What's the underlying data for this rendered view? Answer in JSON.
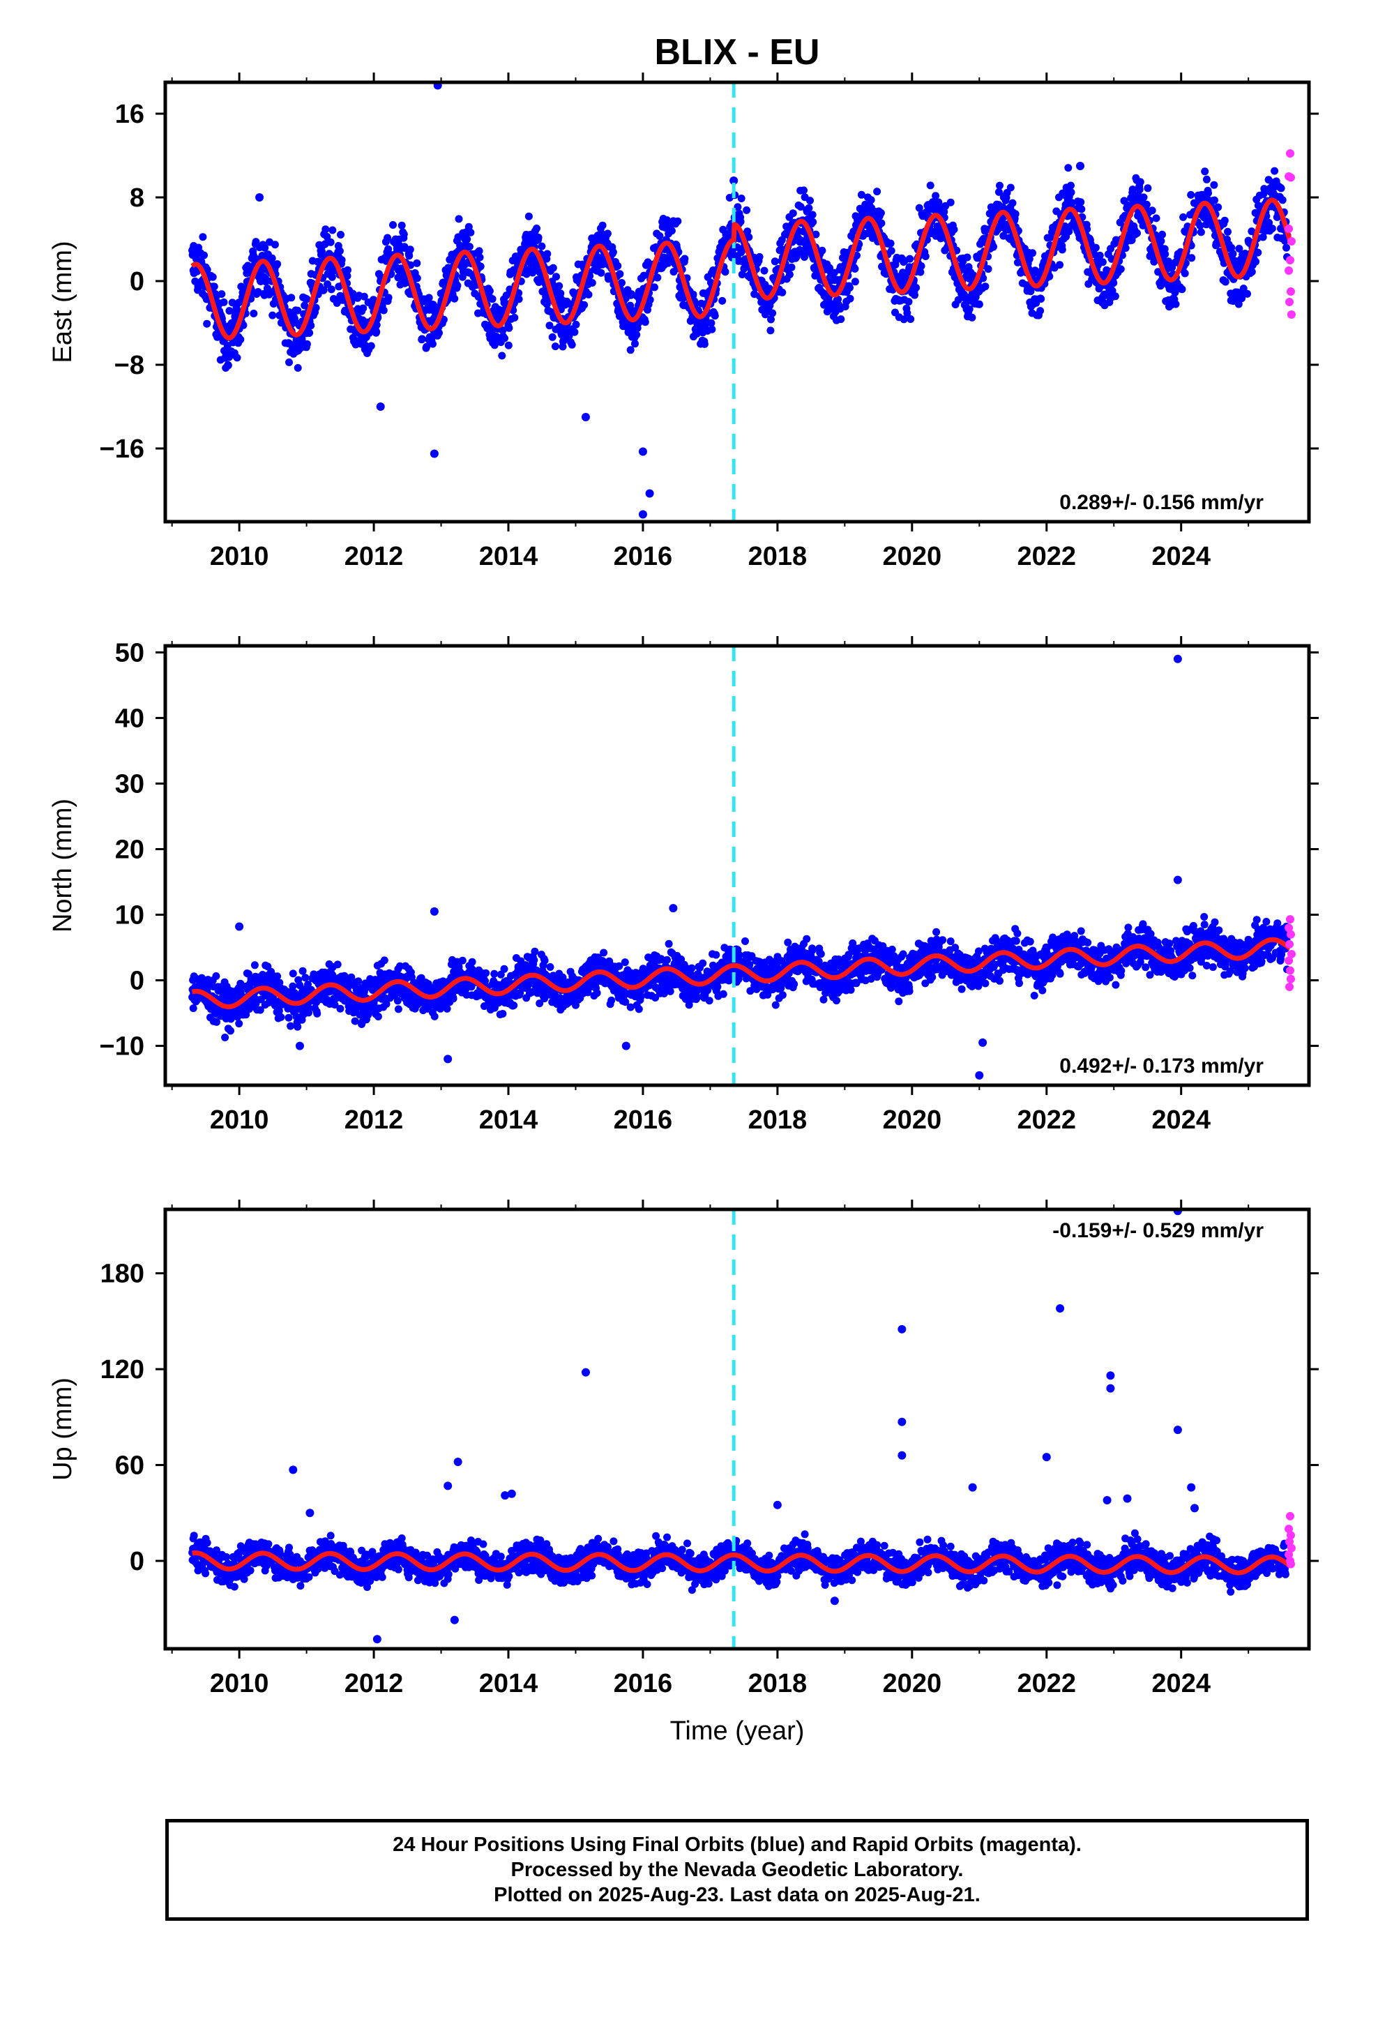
{
  "title": "BLIX - EU",
  "caption": {
    "line1": "24 Hour Positions Using Final Orbits (blue) and Rapid Orbits (magenta).",
    "line2": "Processed by the Nevada Geodetic Laboratory.",
    "line3": "Plotted on 2025-Aug-23. Last data on 2025-Aug-21."
  },
  "colors": {
    "final_orbits": "#0000ff",
    "rapid_orbits": "#ff33ff",
    "model_fit": "#ff1a1a",
    "event_line": "#33e6ee"
  },
  "chart_data": [
    {
      "type": "scatter",
      "name": "east",
      "ylabel": "East (mm)",
      "xlabel": "",
      "xlim": [
        2008.9,
        2025.9
      ],
      "ylim": [
        -23,
        19
      ],
      "xticks": [
        "2010",
        "2012",
        "2014",
        "2016",
        "2018",
        "2020",
        "2022",
        "2024"
      ],
      "yticks": [
        "−16",
        "−8",
        "0",
        "8",
        "16"
      ],
      "ytick_values": [
        -16,
        -8,
        0,
        8,
        16
      ],
      "rate_label": "0.289+/- 0.156 mm/yr",
      "rate_label_position": "bottom-right",
      "event_line_x": 2017.35,
      "model": {
        "offset": -2.0,
        "trend": 0.289,
        "annual_amplitude": 3.6,
        "noise_sd": 1.5,
        "step_at_event": 1.5
      },
      "outliers": [
        {
          "x": 2012.95,
          "y": 18.7
        },
        {
          "x": 2012.9,
          "y": -16.5
        },
        {
          "x": 2016.0,
          "y": -16.3
        },
        {
          "x": 2016.1,
          "y": -20.3
        },
        {
          "x": 2016.0,
          "y": -22.3
        },
        {
          "x": 2015.15,
          "y": -13.0
        },
        {
          "x": 2012.1,
          "y": -12.0
        },
        {
          "x": 2010.3,
          "y": 8.0
        },
        {
          "x": 2017.35,
          "y": 9.6
        },
        {
          "x": 2022.5,
          "y": 11.0
        }
      ],
      "rapid_points": [
        {
          "x": 2025.62,
          "y": 12.2
        },
        {
          "x": 2025.6,
          "y": 10.0
        },
        {
          "x": 2025.63,
          "y": 9.9
        },
        {
          "x": 2025.6,
          "y": 5.0
        },
        {
          "x": 2025.64,
          "y": 3.8
        },
        {
          "x": 2025.62,
          "y": 2.0
        },
        {
          "x": 2025.6,
          "y": 1.0
        },
        {
          "x": 2025.63,
          "y": -1.0
        },
        {
          "x": 2025.61,
          "y": -2.0
        },
        {
          "x": 2025.64,
          "y": -3.2
        }
      ]
    },
    {
      "type": "scatter",
      "name": "north",
      "ylabel": "North (mm)",
      "xlabel": "",
      "xlim": [
        2008.9,
        2025.9
      ],
      "ylim": [
        -16,
        51
      ],
      "xticks": [
        "2010",
        "2012",
        "2014",
        "2016",
        "2018",
        "2020",
        "2022",
        "2024"
      ],
      "yticks": [
        "−10",
        "0",
        "10",
        "20",
        "30",
        "40",
        "50"
      ],
      "ytick_values": [
        -10,
        0,
        10,
        20,
        30,
        40,
        50
      ],
      "rate_label": "0.492+/- 0.173 mm/yr",
      "rate_label_position": "bottom-right",
      "event_line_x": 2017.35,
      "model": {
        "offset": -3.0,
        "trend": 0.492,
        "annual_amplitude": 1.3,
        "noise_sd": 1.6,
        "step_at_event": 0
      },
      "outliers": [
        {
          "x": 2023.95,
          "y": 49.0
        },
        {
          "x": 2023.95,
          "y": 15.3
        },
        {
          "x": 2012.9,
          "y": 10.5
        },
        {
          "x": 2016.45,
          "y": 11.0
        },
        {
          "x": 2010.0,
          "y": 8.2
        },
        {
          "x": 2013.1,
          "y": -12.0
        },
        {
          "x": 2021.0,
          "y": -14.5
        },
        {
          "x": 2021.05,
          "y": -9.5
        },
        {
          "x": 2015.75,
          "y": -10.0
        },
        {
          "x": 2010.9,
          "y": -10.0
        }
      ],
      "rapid_points": [
        {
          "x": 2025.62,
          "y": 9.3
        },
        {
          "x": 2025.6,
          "y": 8.0
        },
        {
          "x": 2025.63,
          "y": 7.0
        },
        {
          "x": 2025.61,
          "y": 5.5
        },
        {
          "x": 2025.64,
          "y": 4.0
        },
        {
          "x": 2025.6,
          "y": 3.0
        },
        {
          "x": 2025.62,
          "y": 1.5
        },
        {
          "x": 2025.63,
          "y": 0.2
        },
        {
          "x": 2025.61,
          "y": -1.0
        }
      ]
    },
    {
      "type": "scatter",
      "name": "up",
      "ylabel": "Up (mm)",
      "xlabel": "Time (year)",
      "xlim": [
        2008.9,
        2025.9
      ],
      "ylim": [
        -55,
        220
      ],
      "xticks": [
        "2010",
        "2012",
        "2014",
        "2016",
        "2018",
        "2020",
        "2022",
        "2024"
      ],
      "yticks": [
        "0",
        "60",
        "120",
        "180"
      ],
      "ytick_values": [
        0,
        60,
        120,
        180
      ],
      "rate_label": "-0.159+/- 0.529 mm/yr",
      "rate_label_position": "top-right",
      "event_line_x": 2017.35,
      "model": {
        "offset": 0.0,
        "trend": -0.159,
        "annual_amplitude": 5.0,
        "noise_sd": 5.0,
        "step_at_event": 0
      },
      "outliers": [
        {
          "x": 2023.95,
          "y": 219.0
        },
        {
          "x": 2022.2,
          "y": 158.0
        },
        {
          "x": 2019.85,
          "y": 145.0
        },
        {
          "x": 2015.15,
          "y": 118.0
        },
        {
          "x": 2022.95,
          "y": 116.0
        },
        {
          "x": 2022.95,
          "y": 108.0
        },
        {
          "x": 2019.85,
          "y": 87.0
        },
        {
          "x": 2023.95,
          "y": 82.0
        },
        {
          "x": 2019.85,
          "y": 66.0
        },
        {
          "x": 2022.0,
          "y": 65.0
        },
        {
          "x": 2013.25,
          "y": 62.0
        },
        {
          "x": 2010.8,
          "y": 57.0
        },
        {
          "x": 2013.1,
          "y": 47.0
        },
        {
          "x": 2020.9,
          "y": 46.0
        },
        {
          "x": 2024.15,
          "y": 46.0
        },
        {
          "x": 2014.05,
          "y": 42.0
        },
        {
          "x": 2013.95,
          "y": 41.0
        },
        {
          "x": 2022.9,
          "y": 38.0
        },
        {
          "x": 2023.2,
          "y": 39.0
        },
        {
          "x": 2011.05,
          "y": 30.0
        },
        {
          "x": 2024.2,
          "y": 33.0
        },
        {
          "x": 2018.0,
          "y": 35.0
        },
        {
          "x": 2012.05,
          "y": -49.0
        },
        {
          "x": 2013.2,
          "y": -37.0
        },
        {
          "x": 2018.85,
          "y": -25.0
        }
      ],
      "rapid_points": [
        {
          "x": 2025.62,
          "y": 28.0
        },
        {
          "x": 2025.6,
          "y": 20.0
        },
        {
          "x": 2025.63,
          "y": 16.0
        },
        {
          "x": 2025.61,
          "y": 12.0
        },
        {
          "x": 2025.64,
          "y": 8.0
        },
        {
          "x": 2025.6,
          "y": 4.0
        },
        {
          "x": 2025.62,
          "y": 0.0
        },
        {
          "x": 2025.63,
          "y": -2.0
        }
      ]
    }
  ]
}
